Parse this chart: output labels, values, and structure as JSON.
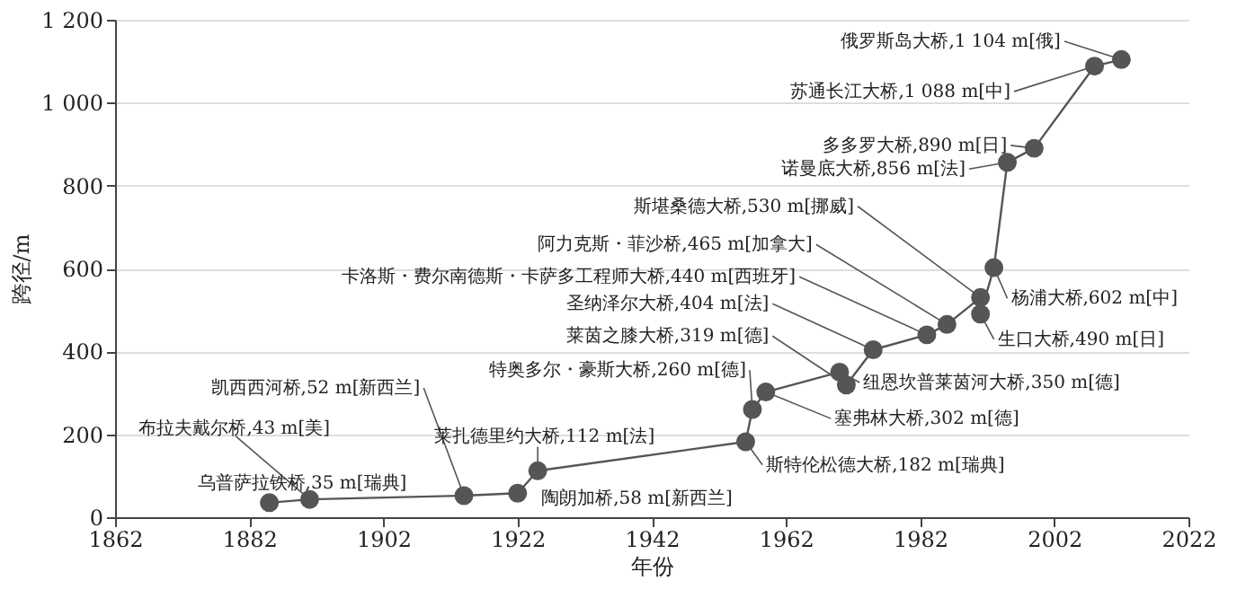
{
  "chart_data": {
    "type": "line",
    "xlabel": "年份",
    "ylabel": "跨径/m",
    "x": [
      1885,
      1891,
      1914,
      1922,
      1925,
      1956,
      1957,
      1959,
      1970,
      1971,
      1975,
      1983,
      1986,
      1991,
      1991,
      1993,
      1995,
      1999,
      2008,
      2012
    ],
    "series": [
      {
        "color": "#555555",
        "values": [
          35,
          43,
          52,
          58,
          112,
          182,
          260,
          302,
          350,
          319,
          404,
          440,
          465,
          530,
          490,
          602,
          856,
          890,
          1088,
          1104
        ]
      }
    ],
    "marker": "circle",
    "grid": "y",
    "xlim": [
      1862,
      2022
    ],
    "xticks": [
      1862,
      1882,
      1902,
      1922,
      1942,
      1962,
      1982,
      2002,
      2022
    ],
    "ylim": [
      0,
      1200
    ],
    "yticks": [
      0,
      200,
      400,
      600,
      800,
      {
        "value": 1000,
        "label": "1 000"
      },
      {
        "value": 1200,
        "label": "1 200"
      }
    ],
    "annotations": [
      {
        "text": "乌普萨拉铁桥,35 m[瑞典]",
        "x": 1885,
        "y": 35
      },
      {
        "text": "布拉夫戴尔桥,43 m[美]",
        "x": 1891,
        "y": 43
      },
      {
        "text": "凯西西河桥,52 m[新西兰]",
        "x": 1914,
        "y": 52
      },
      {
        "text": "陶朗加桥,58 m[新西兰]",
        "x": 1922,
        "y": 58
      },
      {
        "text": "莱扎德里约大桥,112 m[法]",
        "x": 1925,
        "y": 112
      },
      {
        "text": "斯特伦松德大桥,182 m[瑞典]",
        "x": 1956,
        "y": 182
      },
      {
        "text": "特奥多尔・豪斯大桥,260 m[德]",
        "x": 1957,
        "y": 260
      },
      {
        "text": "塞弗林大桥,302 m[德]",
        "x": 1959,
        "y": 302
      },
      {
        "text": "纽恩坎普莱茵河大桥,350 m[德]",
        "x": 1970,
        "y": 350
      },
      {
        "text": "莱茵之膝大桥,319 m[德]",
        "x": 1971,
        "y": 319
      },
      {
        "text": "圣纳泽尔大桥,404 m[法]",
        "x": 1975,
        "y": 404
      },
      {
        "text": "卡洛斯・费尔南德斯・卡萨多工程师大桥,440 m[西班牙]",
        "x": 1983,
        "y": 440
      },
      {
        "text": "阿力克斯・菲沙桥,465 m[加拿大]",
        "x": 1986,
        "y": 465
      },
      {
        "text": "斯堪桑德大桥,530 m[挪威]",
        "x": 1991,
        "y": 530
      },
      {
        "text": "生口大桥,490 m[日]",
        "x": 1991,
        "y": 490
      },
      {
        "text": "杨浦大桥,602 m[中]",
        "x": 1993,
        "y": 602
      },
      {
        "text": "诺曼底大桥,856 m[法]",
        "x": 1995,
        "y": 856
      },
      {
        "text": "多多罗大桥,890 m[日]",
        "x": 1999,
        "y": 890
      },
      {
        "text": "苏通长江大桥,1 088 m[中]",
        "x": 2008,
        "y": 1088
      },
      {
        "text": "俄罗斯岛大桥,1 104 m[俄]",
        "x": 2012,
        "y": 1104
      }
    ]
  }
}
